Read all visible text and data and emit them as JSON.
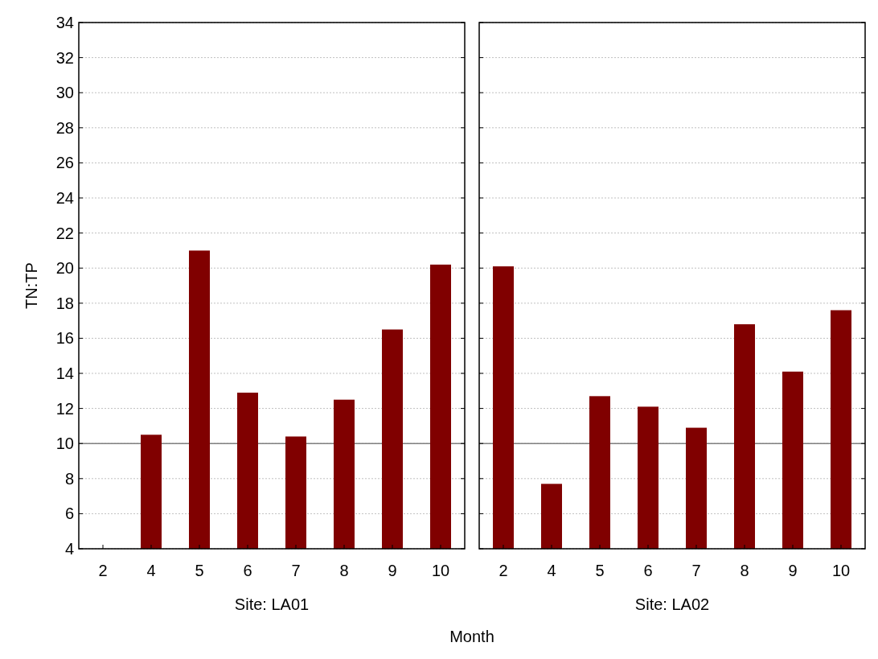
{
  "chart_data": [
    {
      "type": "bar",
      "xlabel": "Site: LA01",
      "ylabel": "TN:TP",
      "categories": [
        "2",
        "4",
        "5",
        "6",
        "7",
        "8",
        "9",
        "10"
      ],
      "series": [
        {
          "color": "#800000",
          "values": [
            null,
            10.5,
            21.0,
            12.9,
            10.4,
            12.5,
            16.5,
            20.2
          ]
        }
      ],
      "ylim": [
        4,
        34
      ],
      "yticks": [
        4,
        6,
        8,
        10,
        12,
        14,
        16,
        18,
        20,
        22,
        24,
        26,
        28,
        30,
        32,
        34
      ],
      "grid": "y",
      "ref_lines": [
        {
          "axis": "y",
          "value": 10,
          "color": "#808080"
        }
      ],
      "annotations": [
        "Month"
      ]
    },
    {
      "type": "bar",
      "xlabel": "Site: LA02",
      "categories": [
        "2",
        "4",
        "5",
        "6",
        "7",
        "8",
        "9",
        "10"
      ],
      "series": [
        {
          "color": "#800000",
          "values": [
            20.1,
            7.7,
            12.7,
            12.1,
            10.9,
            16.8,
            14.1,
            17.6
          ]
        }
      ],
      "ylim": [
        4,
        34
      ],
      "yticks": [
        4,
        6,
        8,
        10,
        12,
        14,
        16,
        18,
        20,
        22,
        24,
        26,
        28,
        30,
        32,
        34
      ],
      "grid": "y",
      "tick_labels": "x",
      "ref_lines": [
        {
          "axis": "y",
          "value": 10,
          "color": "#808080"
        }
      ]
    }
  ]
}
